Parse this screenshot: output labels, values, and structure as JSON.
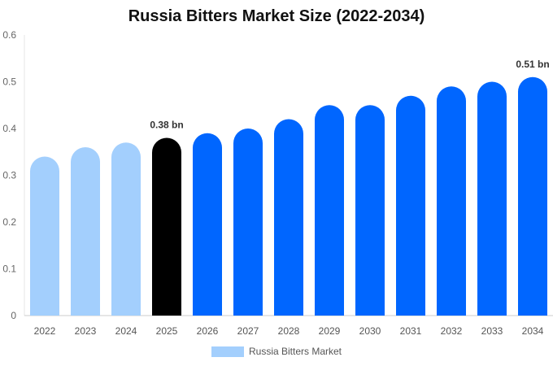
{
  "title": "Russia Bitters Market Size (2022-2034)",
  "chart_data": {
    "type": "bar",
    "title": "Russia Bitters Market Size (2022-2034)",
    "categories": [
      "2022",
      "2023",
      "2024",
      "2025",
      "2026",
      "2027",
      "2028",
      "2029",
      "2030",
      "2031",
      "2032",
      "2033",
      "2034"
    ],
    "series": [
      {
        "name": "Russia Bitters Market",
        "values": [
          0.34,
          0.36,
          0.37,
          0.38,
          0.39,
          0.4,
          0.42,
          0.45,
          0.45,
          0.47,
          0.49,
          0.5,
          0.51
        ]
      }
    ],
    "bar_colors": [
      "#a3cffd",
      "#a3cffd",
      "#a3cffd",
      "#000000",
      "#0066ff",
      "#0066ff",
      "#0066ff",
      "#0066ff",
      "#0066ff",
      "#0066ff",
      "#0066ff",
      "#0066ff",
      "#0066ff"
    ],
    "data_labels": [
      {
        "category": "2025",
        "text": "0.38 bn"
      },
      {
        "category": "2034",
        "text": "0.51 bn"
      }
    ],
    "y_ticks": [
      "0",
      "0.1",
      "0.2",
      "0.3",
      "0.4",
      "0.5",
      "0.6"
    ],
    "ylim": [
      0,
      0.6
    ],
    "xlabel": "",
    "ylabel": "",
    "grid": false,
    "legend": {
      "position": "bottom",
      "label": "Russia Bitters Market",
      "color": "#a3cffd"
    }
  }
}
